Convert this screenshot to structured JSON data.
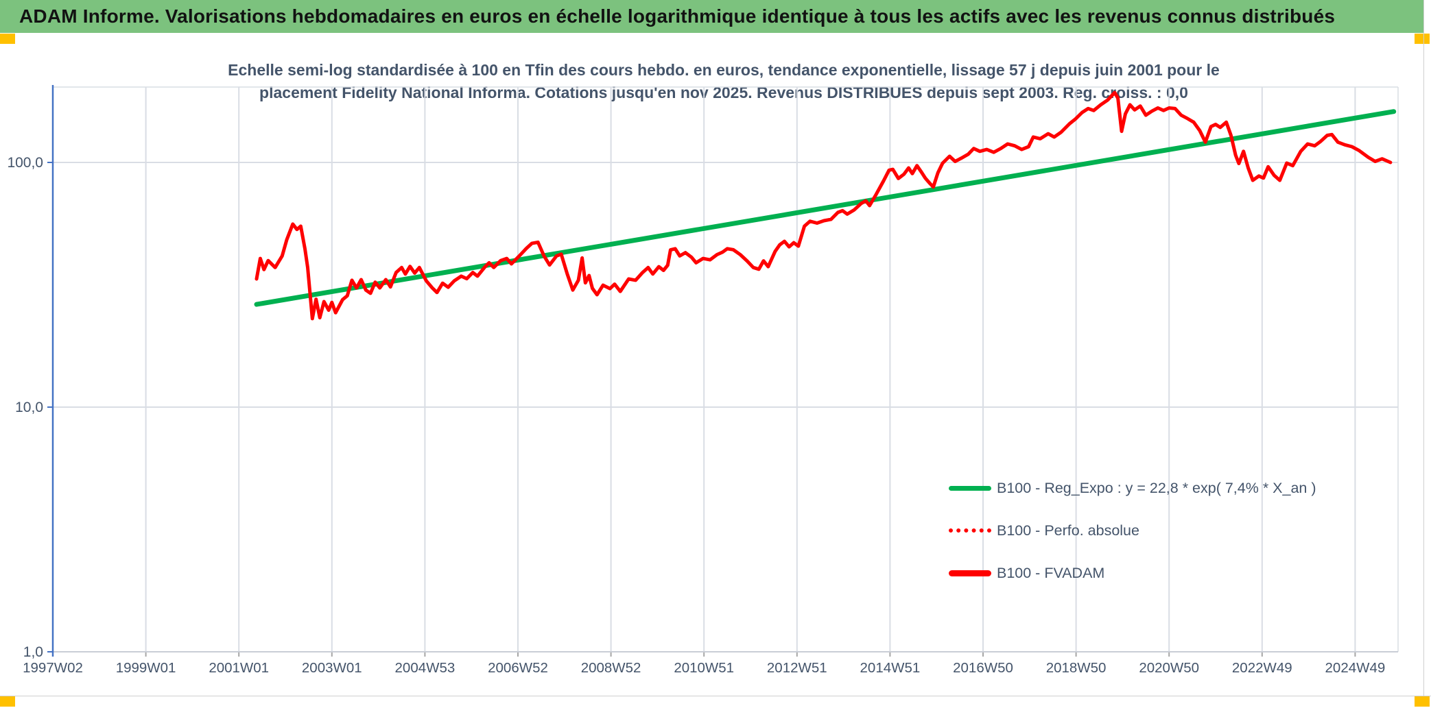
{
  "header": {
    "title": "ADAM Informe. Valorisations hebdomadaires en euros en échelle logarithmique identique à tous les actifs avec les revenus connus distribués"
  },
  "colors": {
    "header_bg": "#7CC27E",
    "corner_accent": "#FFC000",
    "text": "#44546A",
    "axis_blue": "#4472C4",
    "gridline": "#D9DDE4",
    "axis_gray": "#C9CDD6",
    "tick_gray": "#A6A6A6",
    "red": "#FE0000",
    "green": "#00B050"
  },
  "chart_data": {
    "type": "line",
    "x_scale": "time-weekly",
    "y_scale": "log10",
    "title_lines": [
      "Echelle semi-log standardisée à 100 en Tfin des cours hebdo. en euros, tendance exponentielle, lissage 57 j depuis juin 2001 pour le",
      "placement Fidelity National Informa. Cotations jusqu'en nov 2025. Revenus DISTRIBUES depuis sept 2003. Reg. croiss. : 0,0"
    ],
    "ylim": [
      1,
      203
    ],
    "grid": true,
    "legend_position": "inside-lower-right",
    "y_ticks": [
      {
        "label": "100,0",
        "value": 100
      },
      {
        "label": "10,0",
        "value": 10
      },
      {
        "label": "1,0",
        "value": 1
      }
    ],
    "x_ticks": [
      "1997W02",
      "1999W01",
      "2001W01",
      "2003W01",
      "2004W53",
      "2006W52",
      "2008W52",
      "2010W51",
      "2012W51",
      "2014W51",
      "2016W50",
      "2018W50",
      "2020W50",
      "2022W49",
      "2024W49"
    ],
    "x_tick_years": [
      1997.02,
      1999.01,
      2001.01,
      2003.01,
      2004.99,
      2006.99,
      2008.99,
      2010.97,
      2012.97,
      2014.97,
      2016.96,
      2018.96,
      2020.96,
      2022.94,
      2024.94
    ],
    "legend": [
      {
        "label": "B100 - Reg_Expo : y = 22,8 * exp( 7,4% *  X_an )",
        "style": "solid",
        "color": "#00B050"
      },
      {
        "label": "B100 - Perfo. absolue",
        "style": "dotted",
        "color": "#FE0000"
      },
      {
        "label": "B100 - FVADAM",
        "style": "solid-thick",
        "color": "#FE0000"
      }
    ],
    "series": [
      {
        "name": "B100 - Reg_Expo",
        "kind": "trend_exponential",
        "equation": "y = 22,8 * exp( 7,4% * X_an )",
        "color": "#00B050",
        "points": [
          [
            2001.4,
            26.3
          ],
          [
            2025.85,
            161.5
          ]
        ]
      },
      {
        "name": "B100 - Perfo. absolue",
        "kind": "dotted",
        "color": "#FE0000",
        "note": "coincides with B100 - FVADAM, hidden behind the solid red line",
        "points_ref": "B100 - FVADAM"
      },
      {
        "name": "B100 - FVADAM",
        "kind": "line",
        "color": "#FE0000",
        "points": [
          [
            2001.4,
            33.4
          ],
          [
            2001.48,
            40.5
          ],
          [
            2001.56,
            36.5
          ],
          [
            2001.65,
            39.7
          ],
          [
            2001.8,
            37.2
          ],
          [
            2001.95,
            41.5
          ],
          [
            2002.05,
            48.3
          ],
          [
            2002.18,
            56.0
          ],
          [
            2002.27,
            53.2
          ],
          [
            2002.35,
            54.9
          ],
          [
            2002.44,
            44.4
          ],
          [
            2002.5,
            37.2
          ],
          [
            2002.6,
            23.0
          ],
          [
            2002.68,
            27.6
          ],
          [
            2002.76,
            23.2
          ],
          [
            2002.85,
            27.0
          ],
          [
            2002.95,
            24.9
          ],
          [
            2003.02,
            26.8
          ],
          [
            2003.1,
            24.3
          ],
          [
            2003.25,
            27.5
          ],
          [
            2003.35,
            28.5
          ],
          [
            2003.45,
            33.0
          ],
          [
            2003.55,
            30.7
          ],
          [
            2003.65,
            33.2
          ],
          [
            2003.75,
            30.1
          ],
          [
            2003.85,
            29.2
          ],
          [
            2003.95,
            32.4
          ],
          [
            2004.05,
            30.7
          ],
          [
            2004.18,
            33.2
          ],
          [
            2004.28,
            31.0
          ],
          [
            2004.4,
            35.5
          ],
          [
            2004.52,
            37.2
          ],
          [
            2004.6,
            35.0
          ],
          [
            2004.7,
            37.6
          ],
          [
            2004.8,
            35.3
          ],
          [
            2004.9,
            37.2
          ],
          [
            2005.05,
            32.8
          ],
          [
            2005.18,
            30.7
          ],
          [
            2005.28,
            29.4
          ],
          [
            2005.4,
            32.1
          ],
          [
            2005.52,
            30.9
          ],
          [
            2005.65,
            32.8
          ],
          [
            2005.8,
            34.3
          ],
          [
            2005.92,
            33.5
          ],
          [
            2006.05,
            35.5
          ],
          [
            2006.15,
            34.3
          ],
          [
            2006.3,
            37.2
          ],
          [
            2006.4,
            38.9
          ],
          [
            2006.5,
            37.2
          ],
          [
            2006.65,
            39.7
          ],
          [
            2006.78,
            40.5
          ],
          [
            2006.88,
            38.5
          ],
          [
            2007.05,
            41.5
          ],
          [
            2007.2,
            44.5
          ],
          [
            2007.32,
            46.7
          ],
          [
            2007.45,
            47.2
          ],
          [
            2007.58,
            41.5
          ],
          [
            2007.7,
            38.1
          ],
          [
            2007.85,
            41.5
          ],
          [
            2007.95,
            42.2
          ],
          [
            2008.08,
            35.0
          ],
          [
            2008.2,
            30.1
          ],
          [
            2008.32,
            33.0
          ],
          [
            2008.4,
            40.7
          ],
          [
            2008.47,
            32.2
          ],
          [
            2008.55,
            34.5
          ],
          [
            2008.62,
            30.6
          ],
          [
            2008.72,
            28.8
          ],
          [
            2008.85,
            31.5
          ],
          [
            2009.0,
            30.5
          ],
          [
            2009.1,
            31.8
          ],
          [
            2009.22,
            29.7
          ],
          [
            2009.4,
            33.4
          ],
          [
            2009.55,
            33.0
          ],
          [
            2009.7,
            35.5
          ],
          [
            2009.82,
            37.2
          ],
          [
            2009.92,
            35.0
          ],
          [
            2010.05,
            37.5
          ],
          [
            2010.15,
            36.2
          ],
          [
            2010.24,
            38.0
          ],
          [
            2010.3,
            43.9
          ],
          [
            2010.4,
            44.4
          ],
          [
            2010.5,
            41.5
          ],
          [
            2010.62,
            42.8
          ],
          [
            2010.75,
            41.0
          ],
          [
            2010.85,
            38.9
          ],
          [
            2011.0,
            40.5
          ],
          [
            2011.15,
            40.0
          ],
          [
            2011.3,
            42.0
          ],
          [
            2011.42,
            43.0
          ],
          [
            2011.52,
            44.4
          ],
          [
            2011.65,
            44.0
          ],
          [
            2011.8,
            42.0
          ],
          [
            2011.95,
            39.5
          ],
          [
            2012.08,
            37.2
          ],
          [
            2012.2,
            36.6
          ],
          [
            2012.3,
            39.6
          ],
          [
            2012.4,
            37.5
          ],
          [
            2012.55,
            43.3
          ],
          [
            2012.65,
            46.1
          ],
          [
            2012.75,
            47.6
          ],
          [
            2012.85,
            45.2
          ],
          [
            2012.95,
            47.0
          ],
          [
            2013.05,
            45.5
          ],
          [
            2013.18,
            54.9
          ],
          [
            2013.3,
            57.5
          ],
          [
            2013.45,
            56.5
          ],
          [
            2013.6,
            57.8
          ],
          [
            2013.75,
            58.5
          ],
          [
            2013.9,
            62.5
          ],
          [
            2014.0,
            63.5
          ],
          [
            2014.1,
            61.5
          ],
          [
            2014.25,
            64.0
          ],
          [
            2014.4,
            68.0
          ],
          [
            2014.5,
            69.7
          ],
          [
            2014.58,
            66.6
          ],
          [
            2014.72,
            74.0
          ],
          [
            2014.88,
            84.0
          ],
          [
            2015.0,
            93.0
          ],
          [
            2015.08,
            93.7
          ],
          [
            2015.2,
            86.0
          ],
          [
            2015.32,
            89.5
          ],
          [
            2015.42,
            95.0
          ],
          [
            2015.5,
            90.0
          ],
          [
            2015.6,
            97.0
          ],
          [
            2015.7,
            91.0
          ],
          [
            2015.78,
            86.2
          ],
          [
            2015.88,
            82.0
          ],
          [
            2015.95,
            79.4
          ],
          [
            2016.05,
            90.7
          ],
          [
            2016.15,
            99.3
          ],
          [
            2016.3,
            106.0
          ],
          [
            2016.42,
            101.0
          ],
          [
            2016.55,
            104.0
          ],
          [
            2016.7,
            108.0
          ],
          [
            2016.82,
            114.0
          ],
          [
            2016.95,
            111.0
          ],
          [
            2017.1,
            113.0
          ],
          [
            2017.25,
            110.0
          ],
          [
            2017.4,
            114.0
          ],
          [
            2017.55,
            119.0
          ],
          [
            2017.7,
            117.0
          ],
          [
            2017.85,
            113.0
          ],
          [
            2018.0,
            116.0
          ],
          [
            2018.1,
            127.0
          ],
          [
            2018.25,
            125.0
          ],
          [
            2018.42,
            131.0
          ],
          [
            2018.55,
            127.0
          ],
          [
            2018.7,
            133.0
          ],
          [
            2018.88,
            144.0
          ],
          [
            2019.0,
            150.0
          ],
          [
            2019.15,
            160.0
          ],
          [
            2019.28,
            166.0
          ],
          [
            2019.4,
            163.0
          ],
          [
            2019.55,
            172.0
          ],
          [
            2019.7,
            180.0
          ],
          [
            2019.85,
            193.0
          ],
          [
            2019.92,
            183.0
          ],
          [
            2020.0,
            134.0
          ],
          [
            2020.08,
            158.0
          ],
          [
            2020.18,
            172.0
          ],
          [
            2020.28,
            164.0
          ],
          [
            2020.4,
            170.0
          ],
          [
            2020.52,
            156.0
          ],
          [
            2020.65,
            162.0
          ],
          [
            2020.78,
            167.0
          ],
          [
            2020.9,
            163.0
          ],
          [
            2021.02,
            167.0
          ],
          [
            2021.15,
            166.0
          ],
          [
            2021.28,
            156.0
          ],
          [
            2021.42,
            151.0
          ],
          [
            2021.55,
            146.0
          ],
          [
            2021.68,
            135.0
          ],
          [
            2021.8,
            121.0
          ],
          [
            2021.92,
            140.0
          ],
          [
            2022.02,
            143.0
          ],
          [
            2022.12,
            139.0
          ],
          [
            2022.25,
            146.0
          ],
          [
            2022.35,
            129.0
          ],
          [
            2022.45,
            107.0
          ],
          [
            2022.52,
            99.0
          ],
          [
            2022.62,
            111.0
          ],
          [
            2022.72,
            95.0
          ],
          [
            2022.82,
            84.5
          ],
          [
            2022.95,
            88.0
          ],
          [
            2023.05,
            86.3
          ],
          [
            2023.15,
            96.0
          ],
          [
            2023.28,
            88.5
          ],
          [
            2023.4,
            84.5
          ],
          [
            2023.55,
            99.4
          ],
          [
            2023.68,
            97.0
          ],
          [
            2023.85,
            111.0
          ],
          [
            2024.0,
            119.0
          ],
          [
            2024.15,
            117.0
          ],
          [
            2024.28,
            122.0
          ],
          [
            2024.42,
            129.0
          ],
          [
            2024.52,
            130.0
          ],
          [
            2024.65,
            121.0
          ],
          [
            2024.8,
            118.0
          ],
          [
            2024.95,
            116.0
          ],
          [
            2025.1,
            112.0
          ],
          [
            2025.3,
            105.0
          ],
          [
            2025.45,
            101.0
          ],
          [
            2025.6,
            103.5
          ],
          [
            2025.78,
            100.0
          ]
        ]
      }
    ]
  }
}
